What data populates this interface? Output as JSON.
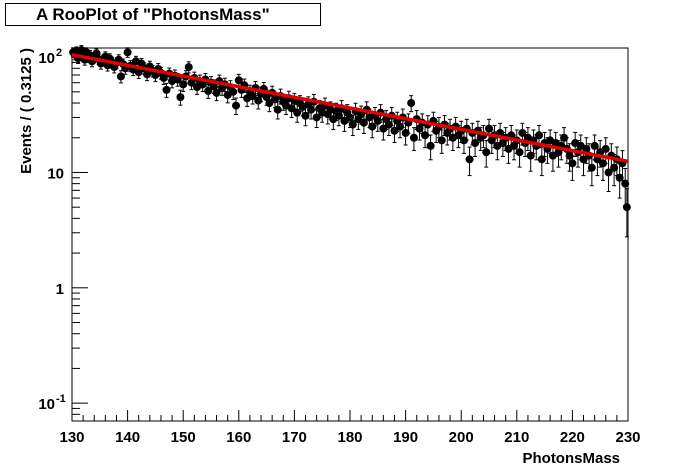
{
  "chart_data": {
    "type": "scatter",
    "title": "A RooPlot of \"PhotonsMass\"",
    "xlabel": "PhotonsMass",
    "ylabel": "Events / ( 0.3125 )",
    "xlim": [
      130,
      230
    ],
    "ylim": [
      0.07,
      120
    ],
    "yscale": "log",
    "x_ticks": [
      130,
      140,
      150,
      160,
      170,
      180,
      190,
      200,
      210,
      220,
      230
    ],
    "y_ticks": [
      {
        "value": 0.1,
        "base": "10",
        "exp": "-1"
      },
      {
        "value": 1,
        "base": "1",
        "exp": ""
      },
      {
        "value": 10,
        "base": "10",
        "exp": ""
      },
      {
        "value": 100,
        "base": "10",
        "exp": "2"
      }
    ],
    "series": [
      {
        "kind": "points",
        "color": "#000000",
        "x": [
          130.2,
          130.5,
          130.8,
          131.1,
          131.4,
          131.7,
          132.0,
          132.3,
          132.6,
          132.9,
          133.2,
          133.6,
          134.0,
          134.4,
          134.8,
          135.2,
          135.6,
          136.0,
          136.4,
          136.8,
          137.2,
          137.6,
          138.0,
          138.4,
          138.8,
          139.2,
          139.6,
          140.0,
          140.5,
          141.0,
          141.5,
          142.0,
          142.5,
          143.0,
          143.5,
          144.0,
          144.5,
          145.0,
          145.5,
          146.0,
          146.5,
          147.0,
          147.5,
          148.0,
          148.5,
          149.0,
          149.5,
          150.0,
          150.5,
          151.0,
          151.5,
          152.0,
          152.5,
          153.0,
          153.5,
          154.0,
          154.5,
          155.0,
          155.5,
          156.0,
          156.5,
          157.0,
          157.5,
          158.0,
          158.5,
          159.0,
          159.5,
          160.0,
          160.5,
          161.0,
          161.5,
          162.0,
          162.5,
          163.0,
          163.5,
          164.0,
          164.5,
          165.0,
          165.5,
          166.0,
          166.5,
          167.0,
          167.5,
          168.0,
          168.5,
          169.0,
          169.5,
          170.0,
          170.5,
          171.0,
          171.5,
          172.0,
          172.5,
          173.0,
          173.5,
          174.0,
          174.5,
          175.0,
          175.5,
          176.0,
          176.5,
          177.0,
          177.5,
          178.0,
          178.5,
          179.0,
          179.5,
          180.0,
          180.5,
          181.0,
          181.5,
          182.0,
          182.5,
          183.0,
          183.5,
          184.0,
          184.5,
          185.0,
          185.5,
          186.0,
          186.5,
          187.0,
          187.5,
          188.0,
          188.5,
          189.0,
          189.5,
          190.0,
          190.5,
          191.0,
          191.5,
          192.0,
          192.5,
          193.0,
          193.5,
          194.0,
          194.5,
          195.0,
          195.5,
          196.0,
          196.5,
          197.0,
          197.5,
          198.0,
          198.5,
          199.0,
          199.5,
          200.0,
          200.5,
          201.0,
          201.5,
          202.0,
          202.5,
          203.0,
          203.5,
          204.0,
          204.5,
          205.0,
          205.5,
          206.0,
          206.5,
          207.0,
          207.5,
          208.0,
          208.5,
          209.0,
          209.5,
          210.0,
          210.5,
          211.0,
          211.5,
          212.0,
          212.5,
          213.0,
          213.5,
          214.0,
          214.5,
          215.0,
          215.5,
          216.0,
          216.5,
          217.0,
          217.5,
          218.0,
          218.5,
          219.0,
          219.5,
          220.0,
          220.5,
          221.0,
          221.5,
          222.0,
          222.5,
          223.0,
          223.5,
          224.0,
          224.5,
          225.0,
          225.5,
          226.0,
          226.5,
          227.0,
          227.5,
          228.0,
          228.5,
          229.0,
          229.5,
          229.8
        ],
        "y": [
          110,
          105,
          112,
          98,
          108,
          115,
          102,
          95,
          110,
          100,
          104,
          92,
          99,
          108,
          96,
          88,
          94,
          101,
          85,
          97,
          90,
          82,
          89,
          95,
          68,
          87,
          80,
          110,
          84,
          78,
          92,
          74,
          88,
          80,
          71,
          83,
          76,
          70,
          79,
          73,
          66,
          52,
          72,
          62,
          69,
          64,
          45,
          58,
          68,
          82,
          60,
          66,
          55,
          62,
          58,
          64,
          51,
          60,
          56,
          49,
          62,
          54,
          58,
          47,
          55,
          50,
          38,
          63,
          52,
          57,
          44,
          50,
          46,
          54,
          42,
          48,
          53,
          45,
          40,
          49,
          43,
          35,
          46,
          41,
          38,
          44,
          36,
          42,
          33,
          40,
          37,
          31,
          39,
          35,
          41,
          30,
          36,
          33,
          38,
          32,
          35,
          29,
          34,
          31,
          36,
          28,
          33,
          30,
          26,
          34,
          29,
          32,
          27,
          35,
          30,
          25,
          31,
          28,
          33,
          24,
          29,
          26,
          31,
          23,
          28,
          25,
          30,
          22,
          27,
          40,
          20,
          29,
          24,
          27,
          21,
          26,
          17,
          28,
          23,
          25,
          19,
          26,
          22,
          24,
          20,
          25,
          21,
          23,
          19,
          24,
          13,
          22,
          18,
          23,
          20,
          21,
          15,
          24,
          19,
          21,
          17,
          22,
          18,
          20,
          16,
          21,
          17,
          19,
          15,
          22,
          18,
          20,
          14,
          19,
          17,
          21,
          13,
          18,
          16,
          19,
          14,
          18,
          15,
          17,
          20,
          16,
          14,
          12,
          18,
          15,
          17,
          13,
          16,
          14,
          11,
          17,
          13,
          15,
          12,
          16,
          10,
          14,
          11,
          13,
          9,
          12,
          8,
          5
        ]
      },
      {
        "kind": "line",
        "color": "#e00000",
        "x": [
          130,
          230
        ],
        "y": [
          105,
          12.5
        ]
      }
    ],
    "grid": false,
    "legend": "none"
  }
}
